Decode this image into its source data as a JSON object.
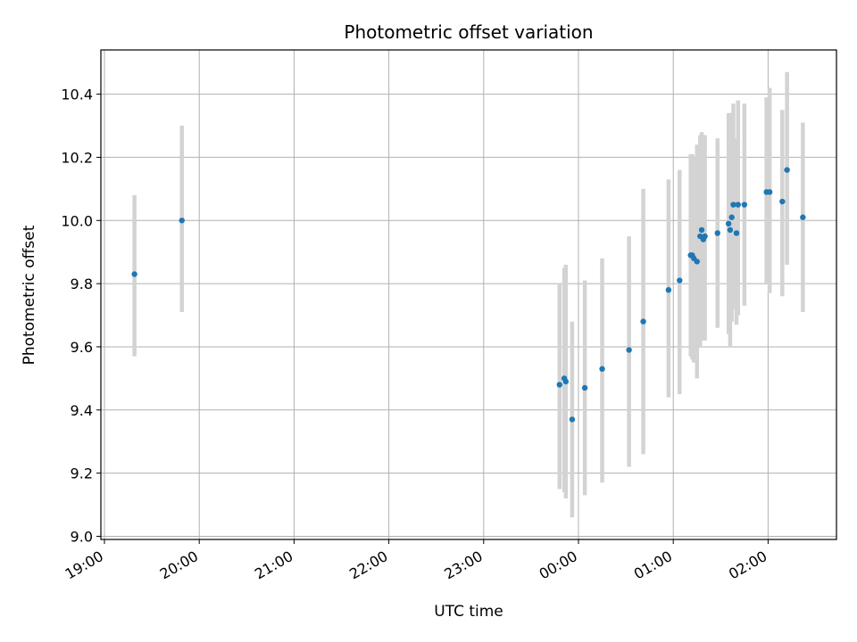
{
  "chart_data": {
    "type": "scatter",
    "title": "Photometric offset variation",
    "xlabel": "UTC time",
    "ylabel": "Photometric offset",
    "x_ticks": [
      "19:00",
      "20:00",
      "21:00",
      "22:00",
      "23:00",
      "00:00",
      "01:00",
      "02:00"
    ],
    "y_ticks": [
      "9.0",
      "9.2",
      "9.4",
      "9.6",
      "9.8",
      "10.0",
      "10.2",
      "10.4"
    ],
    "xlim": [
      "19:00",
      "02:45"
    ],
    "ylim": [
      8.99,
      10.54
    ],
    "grid": true,
    "legend": "none",
    "x_tick_rotation_deg": 30,
    "colors": {
      "point": "#1f77b4",
      "errorbar": "#d3d3d3",
      "grid": "#b0b0b0"
    },
    "points": [
      {
        "t": "19:19",
        "y": 9.83,
        "lo": 9.57,
        "hi": 10.08
      },
      {
        "t": "19:49",
        "y": 10.0,
        "lo": 9.71,
        "hi": 10.3
      },
      {
        "t": "23:48",
        "y": 9.48,
        "lo": 9.15,
        "hi": 9.8
      },
      {
        "t": "23:51",
        "y": 9.5,
        "lo": 9.14,
        "hi": 9.85
      },
      {
        "t": "23:52",
        "y": 9.49,
        "lo": 9.12,
        "hi": 9.86
      },
      {
        "t": "23:56",
        "y": 9.37,
        "lo": 9.06,
        "hi": 9.68
      },
      {
        "t": "00:04",
        "y": 9.47,
        "lo": 9.13,
        "hi": 9.81
      },
      {
        "t": "00:15",
        "y": 9.53,
        "lo": 9.17,
        "hi": 9.88
      },
      {
        "t": "00:32",
        "y": 9.59,
        "lo": 9.22,
        "hi": 9.95
      },
      {
        "t": "00:41",
        "y": 9.68,
        "lo": 9.26,
        "hi": 10.1
      },
      {
        "t": "00:57",
        "y": 9.78,
        "lo": 9.44,
        "hi": 10.13
      },
      {
        "t": "01:04",
        "y": 9.81,
        "lo": 9.45,
        "hi": 10.16
      },
      {
        "t": "01:11",
        "y": 9.89,
        "lo": 9.57,
        "hi": 10.21
      },
      {
        "t": "01:12",
        "y": 9.89,
        "lo": 9.56,
        "hi": 10.21
      },
      {
        "t": "01:13",
        "y": 9.88,
        "lo": 9.55,
        "hi": 10.2
      },
      {
        "t": "01:15",
        "y": 9.87,
        "lo": 9.5,
        "hi": 10.24
      },
      {
        "t": "01:17",
        "y": 9.95,
        "lo": 9.6,
        "hi": 10.27
      },
      {
        "t": "01:18",
        "y": 9.97,
        "lo": 9.64,
        "hi": 10.28
      },
      {
        "t": "01:19",
        "y": 9.94,
        "lo": 9.62,
        "hi": 10.27
      },
      {
        "t": "01:20",
        "y": 9.95,
        "lo": 9.62,
        "hi": 10.27
      },
      {
        "t": "01:28",
        "y": 9.96,
        "lo": 9.66,
        "hi": 10.26
      },
      {
        "t": "01:35",
        "y": 9.99,
        "lo": 9.64,
        "hi": 10.34
      },
      {
        "t": "01:36",
        "y": 9.97,
        "lo": 9.6,
        "hi": 10.34
      },
      {
        "t": "01:37",
        "y": 10.01,
        "lo": 9.68,
        "hi": 10.34
      },
      {
        "t": "01:38",
        "y": 10.05,
        "lo": 9.72,
        "hi": 10.37
      },
      {
        "t": "01:40",
        "y": 9.96,
        "lo": 9.67,
        "hi": 10.26
      },
      {
        "t": "01:41",
        "y": 10.05,
        "lo": 9.7,
        "hi": 10.38
      },
      {
        "t": "01:45",
        "y": 10.05,
        "lo": 9.73,
        "hi": 10.37
      },
      {
        "t": "01:59",
        "y": 10.09,
        "lo": 9.8,
        "hi": 10.39
      },
      {
        "t": "02:01",
        "y": 10.09,
        "lo": 9.77,
        "hi": 10.42
      },
      {
        "t": "02:09",
        "y": 10.06,
        "lo": 9.76,
        "hi": 10.35
      },
      {
        "t": "02:12",
        "y": 10.16,
        "lo": 9.86,
        "hi": 10.47
      },
      {
        "t": "02:22",
        "y": 10.01,
        "lo": 9.71,
        "hi": 10.31
      }
    ]
  }
}
